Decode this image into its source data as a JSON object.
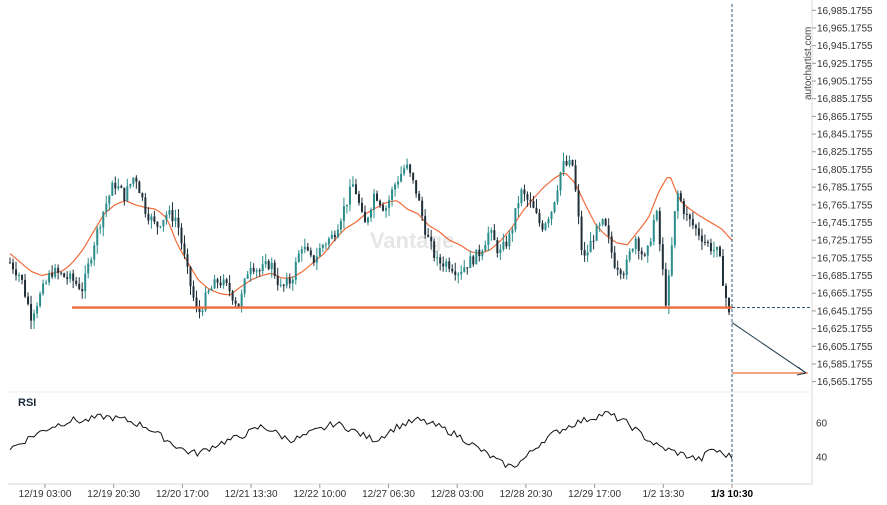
{
  "brand": "autochartist.com",
  "watermark": "Vantage",
  "colors": {
    "bull": "#2b8c8c",
    "bear": "#1f2f3a",
    "ma": "#f06a3a",
    "support": "#f06a3a",
    "rsi": "#111111",
    "projection": "#1f3a4a",
    "vline": "#2b5b7b"
  },
  "chart_data": {
    "type": "candlestick",
    "title": "",
    "y_ticks": [
      "16,985.1755",
      "16,965.1755",
      "16,945.1755",
      "16,925.1755",
      "16,905.1755",
      "16,885.1755",
      "16,865.1755",
      "16,845.1755",
      "16,825.1755",
      "16,805.1755",
      "16,785.1755",
      "16,765.1755",
      "16,745.1755",
      "16,725.1755",
      "16,705.1755",
      "16,685.1755",
      "16,665.1755",
      "16,645.1755",
      "16,625.1755",
      "16,605.1755",
      "16,585.1755",
      "16,565.1755"
    ],
    "ylim": [
      16558,
      16990
    ],
    "x_ticks": [
      "12/19 03:00",
      "12/19 20:30",
      "12/20 17:00",
      "12/21 13:30",
      "12/22 10:00",
      "12/27 06:30",
      "12/28 03:00",
      "12/28 20:30",
      "12/29 17:00",
      "1/2 13:30",
      "1/3 10:30"
    ],
    "highlight_tick": "1/3 10:30",
    "support_level": 16649,
    "target_level": 16575,
    "projection": {
      "from": 16632,
      "to": 16575
    },
    "price_path": [
      16700,
      16685,
      16640,
      16665,
      16690,
      16685,
      16680,
      16670,
      16720,
      16760,
      16790,
      16775,
      16800,
      16760,
      16740,
      16755,
      16750,
      16690,
      16640,
      16665,
      16680,
      16670,
      16650,
      16700,
      16690,
      16700,
      16670,
      16680,
      16720,
      16700,
      16720,
      16730,
      16760,
      16790,
      16740,
      16780,
      16760,
      16790,
      16810,
      16780,
      16730,
      16700,
      16700,
      16690,
      16700,
      16710,
      16735,
      16710,
      16730,
      16780,
      16765,
      16740,
      16760,
      16810,
      16810,
      16700,
      16730,
      16745,
      16700,
      16690,
      16730,
      16700,
      16760,
      16650,
      16780,
      16750,
      16735,
      16720,
      16710,
      16640
    ],
    "ma_path": [
      16710,
      16700,
      16690,
      16685,
      16688,
      16690,
      16700,
      16715,
      16735,
      16755,
      16765,
      16770,
      16765,
      16762,
      16760,
      16750,
      16720,
      16700,
      16680,
      16670,
      16665,
      16663,
      16672,
      16680,
      16685,
      16688,
      16682,
      16683,
      16690,
      16700,
      16710,
      16725,
      16738,
      16745,
      16755,
      16762,
      16768,
      16770,
      16760,
      16755,
      16742,
      16735,
      16725,
      16720,
      16712,
      16710,
      16715,
      16726,
      16740,
      16758,
      16772,
      16785,
      16795,
      16802,
      16790,
      16765,
      16742,
      16730,
      16722,
      16720,
      16735,
      16750,
      16780,
      16800,
      16770,
      16760,
      16752,
      16745,
      16738,
      16725
    ],
    "rsi": {
      "title": "RSI",
      "ticks": [
        "60",
        "40"
      ],
      "ylim": [
        25,
        75
      ],
      "values": [
        45,
        48,
        52,
        55,
        58,
        60,
        62,
        61,
        63,
        64,
        63,
        62,
        60,
        58,
        54,
        50,
        46,
        43,
        42,
        45,
        48,
        50,
        52,
        55,
        58,
        56,
        52,
        50,
        52,
        55,
        57,
        60,
        58,
        55,
        52,
        50,
        54,
        58,
        60,
        62,
        60,
        58,
        55,
        52,
        48,
        44,
        40,
        36,
        34,
        38,
        44,
        50,
        54,
        57,
        60,
        62,
        64,
        66,
        63,
        60,
        55,
        50,
        46,
        44,
        42,
        40,
        38,
        45,
        42,
        40
      ]
    }
  }
}
